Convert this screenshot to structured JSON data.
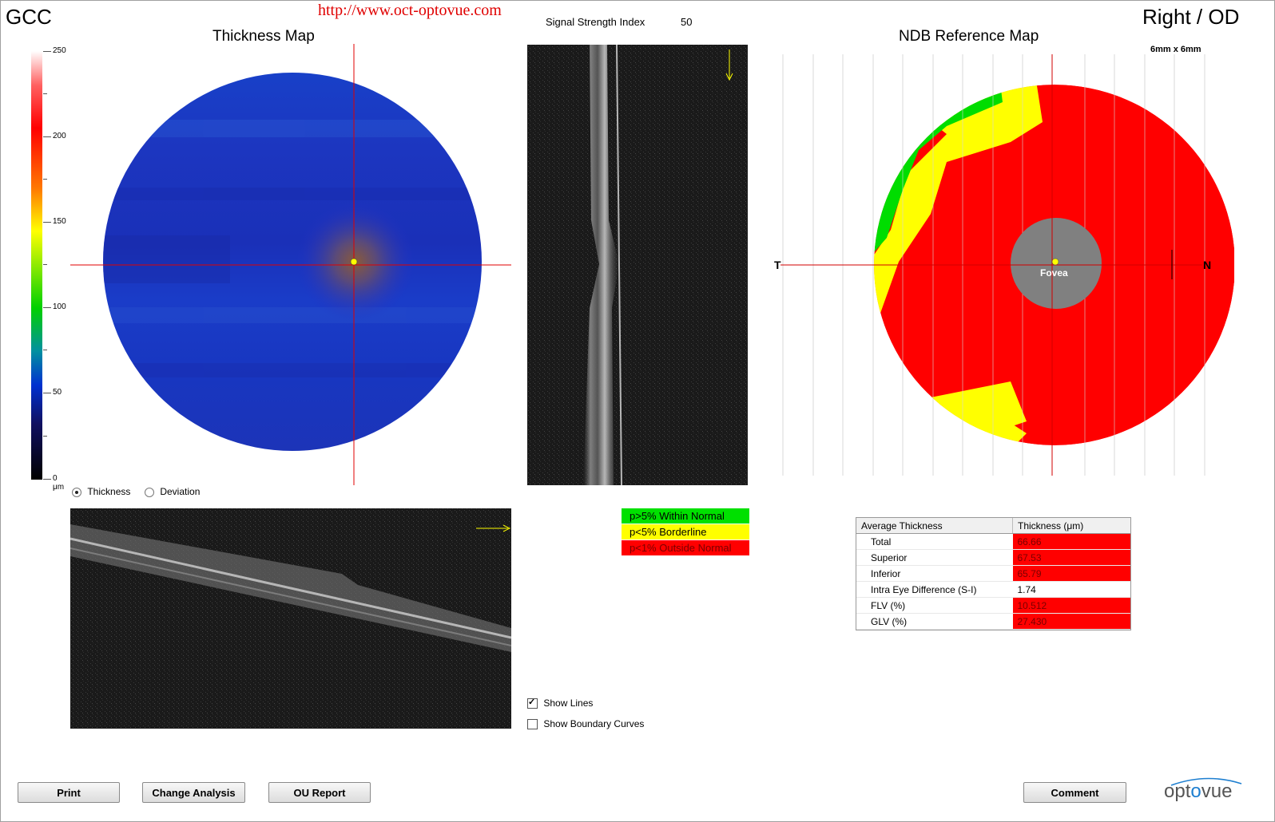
{
  "header": {
    "analysis": "GCC",
    "url": "http://www.oct-optovue.com",
    "ssi_label": "Signal Strength Index",
    "ssi_value": "50",
    "eye": "Right / OD"
  },
  "thickness_map": {
    "title": "Thickness Map",
    "scale_ticks": [
      "250",
      "200",
      "150",
      "100",
      "50",
      "0 μm"
    ],
    "options": [
      {
        "label": "Thickness",
        "selected": true
      },
      {
        "label": "Deviation",
        "selected": false
      }
    ]
  },
  "ndb_map": {
    "title": "NDB Reference Map",
    "size_label": "6mm x 6mm",
    "left_label": "T",
    "right_label": "N",
    "fovea_label": "Fovea"
  },
  "legend": [
    {
      "label": "p>5% Within Normal",
      "color": "#00e000",
      "text_color": "#111111"
    },
    {
      "label": "p<5% Borderline",
      "color": "#ffff00",
      "text_color": "#111111"
    },
    {
      "label": "p<1% Outside Normal",
      "color": "#ff0000",
      "text_color": "#8a0000"
    }
  ],
  "table": {
    "col1": "Average Thickness",
    "col2": "Thickness (μm)",
    "rows": [
      {
        "label": "Total",
        "value": "66.66",
        "abnormal": true
      },
      {
        "label": "Superior",
        "value": "67.53",
        "abnormal": true
      },
      {
        "label": "Inferior",
        "value": "65.79",
        "abnormal": true
      },
      {
        "label": "Intra Eye Difference (S-I)",
        "value": "1.74",
        "abnormal": false
      },
      {
        "label": "FLV (%)",
        "value": "10.512",
        "abnormal": true
      },
      {
        "label": "GLV (%)",
        "value": "27.430",
        "abnormal": true
      }
    ]
  },
  "checkboxes": {
    "show_lines": "Show Lines",
    "show_lines_checked": true,
    "show_boundary": "Show Boundary Curves",
    "show_boundary_checked": false
  },
  "buttons": {
    "print": "Print",
    "change_analysis": "Change Analysis",
    "ou_report": "OU Report",
    "comment": "Comment"
  },
  "brand": {
    "left": "opt",
    "o": "o",
    "right": "vue"
  }
}
